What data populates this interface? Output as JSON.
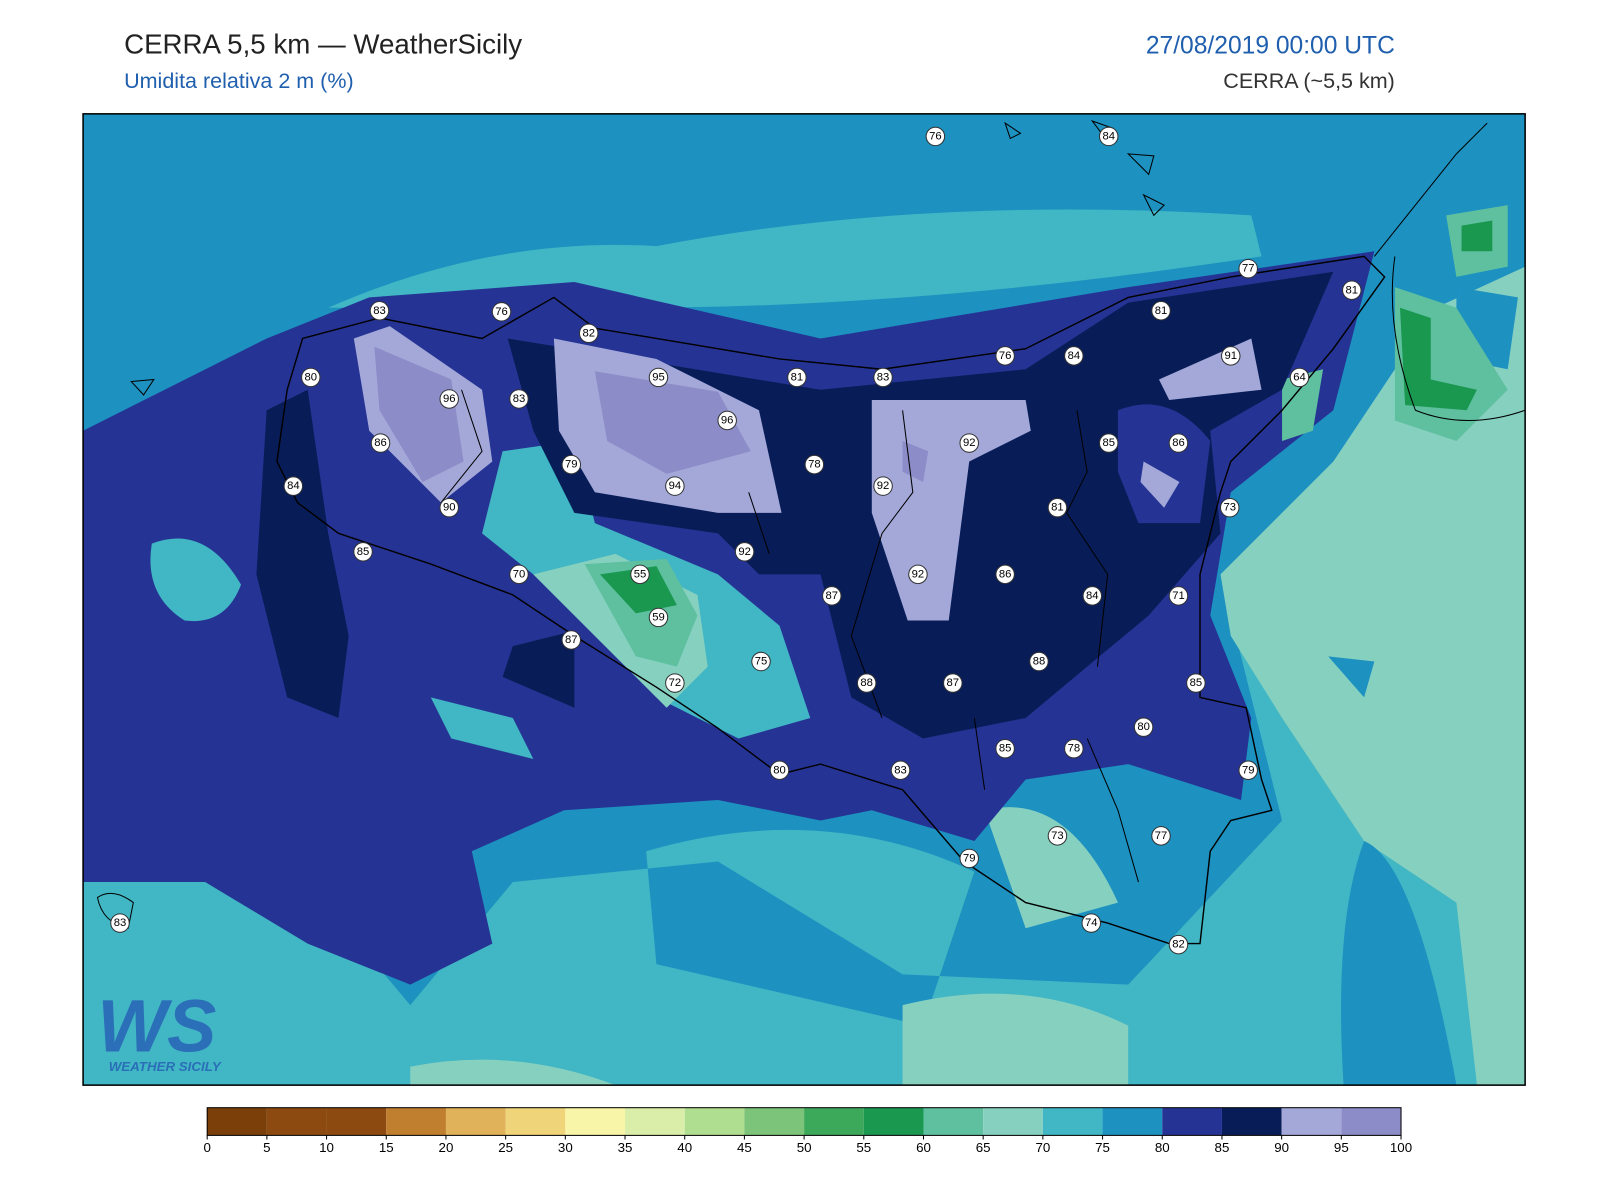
{
  "header": {
    "title": "CERRA 5,5 km — WeatherSicily",
    "subtitle": "Umidita relativa 2 m (%)",
    "datetime": "27/08/2019 00:00 UTC",
    "model": "CERRA (~5,5 km)"
  },
  "stations": [
    76,
    84,
    77,
    81,
    81,
    83,
    76,
    82,
    76,
    84,
    91,
    80,
    95,
    81,
    83,
    64,
    96,
    83,
    96,
    86,
    92,
    85,
    86,
    79,
    78,
    84,
    94,
    92,
    90,
    81,
    73,
    85,
    92,
    70,
    55,
    92,
    86,
    87,
    84,
    71,
    59,
    87,
    75,
    88,
    72,
    88,
    87,
    85,
    80,
    85,
    78,
    80,
    83,
    79,
    73,
    77,
    79,
    83,
    74,
    82
  ],
  "colorbar": {
    "ticks": [
      0,
      5,
      10,
      15,
      20,
      25,
      30,
      35,
      40,
      45,
      50,
      55,
      60,
      65,
      70,
      75,
      80,
      85,
      90,
      95,
      100
    ],
    "colors": [
      "#7b3f0a",
      "#8c4a10",
      "#8c4a10",
      "#c07f2e",
      "#e0b25a",
      "#f0d47a",
      "#f8f5a8",
      "#daeeaa",
      "#b0de90",
      "#7cc47a",
      "#3ca85a",
      "#1a9850",
      "#5fc0a0",
      "#86d0c0",
      "#41b6c4",
      "#1d91c0",
      "#253494",
      "#081d58",
      "#a3a8d8",
      "#8c8cc8"
    ]
  },
  "logo": {
    "mark": "WS",
    "text": "WEATHER SICILY"
  }
}
